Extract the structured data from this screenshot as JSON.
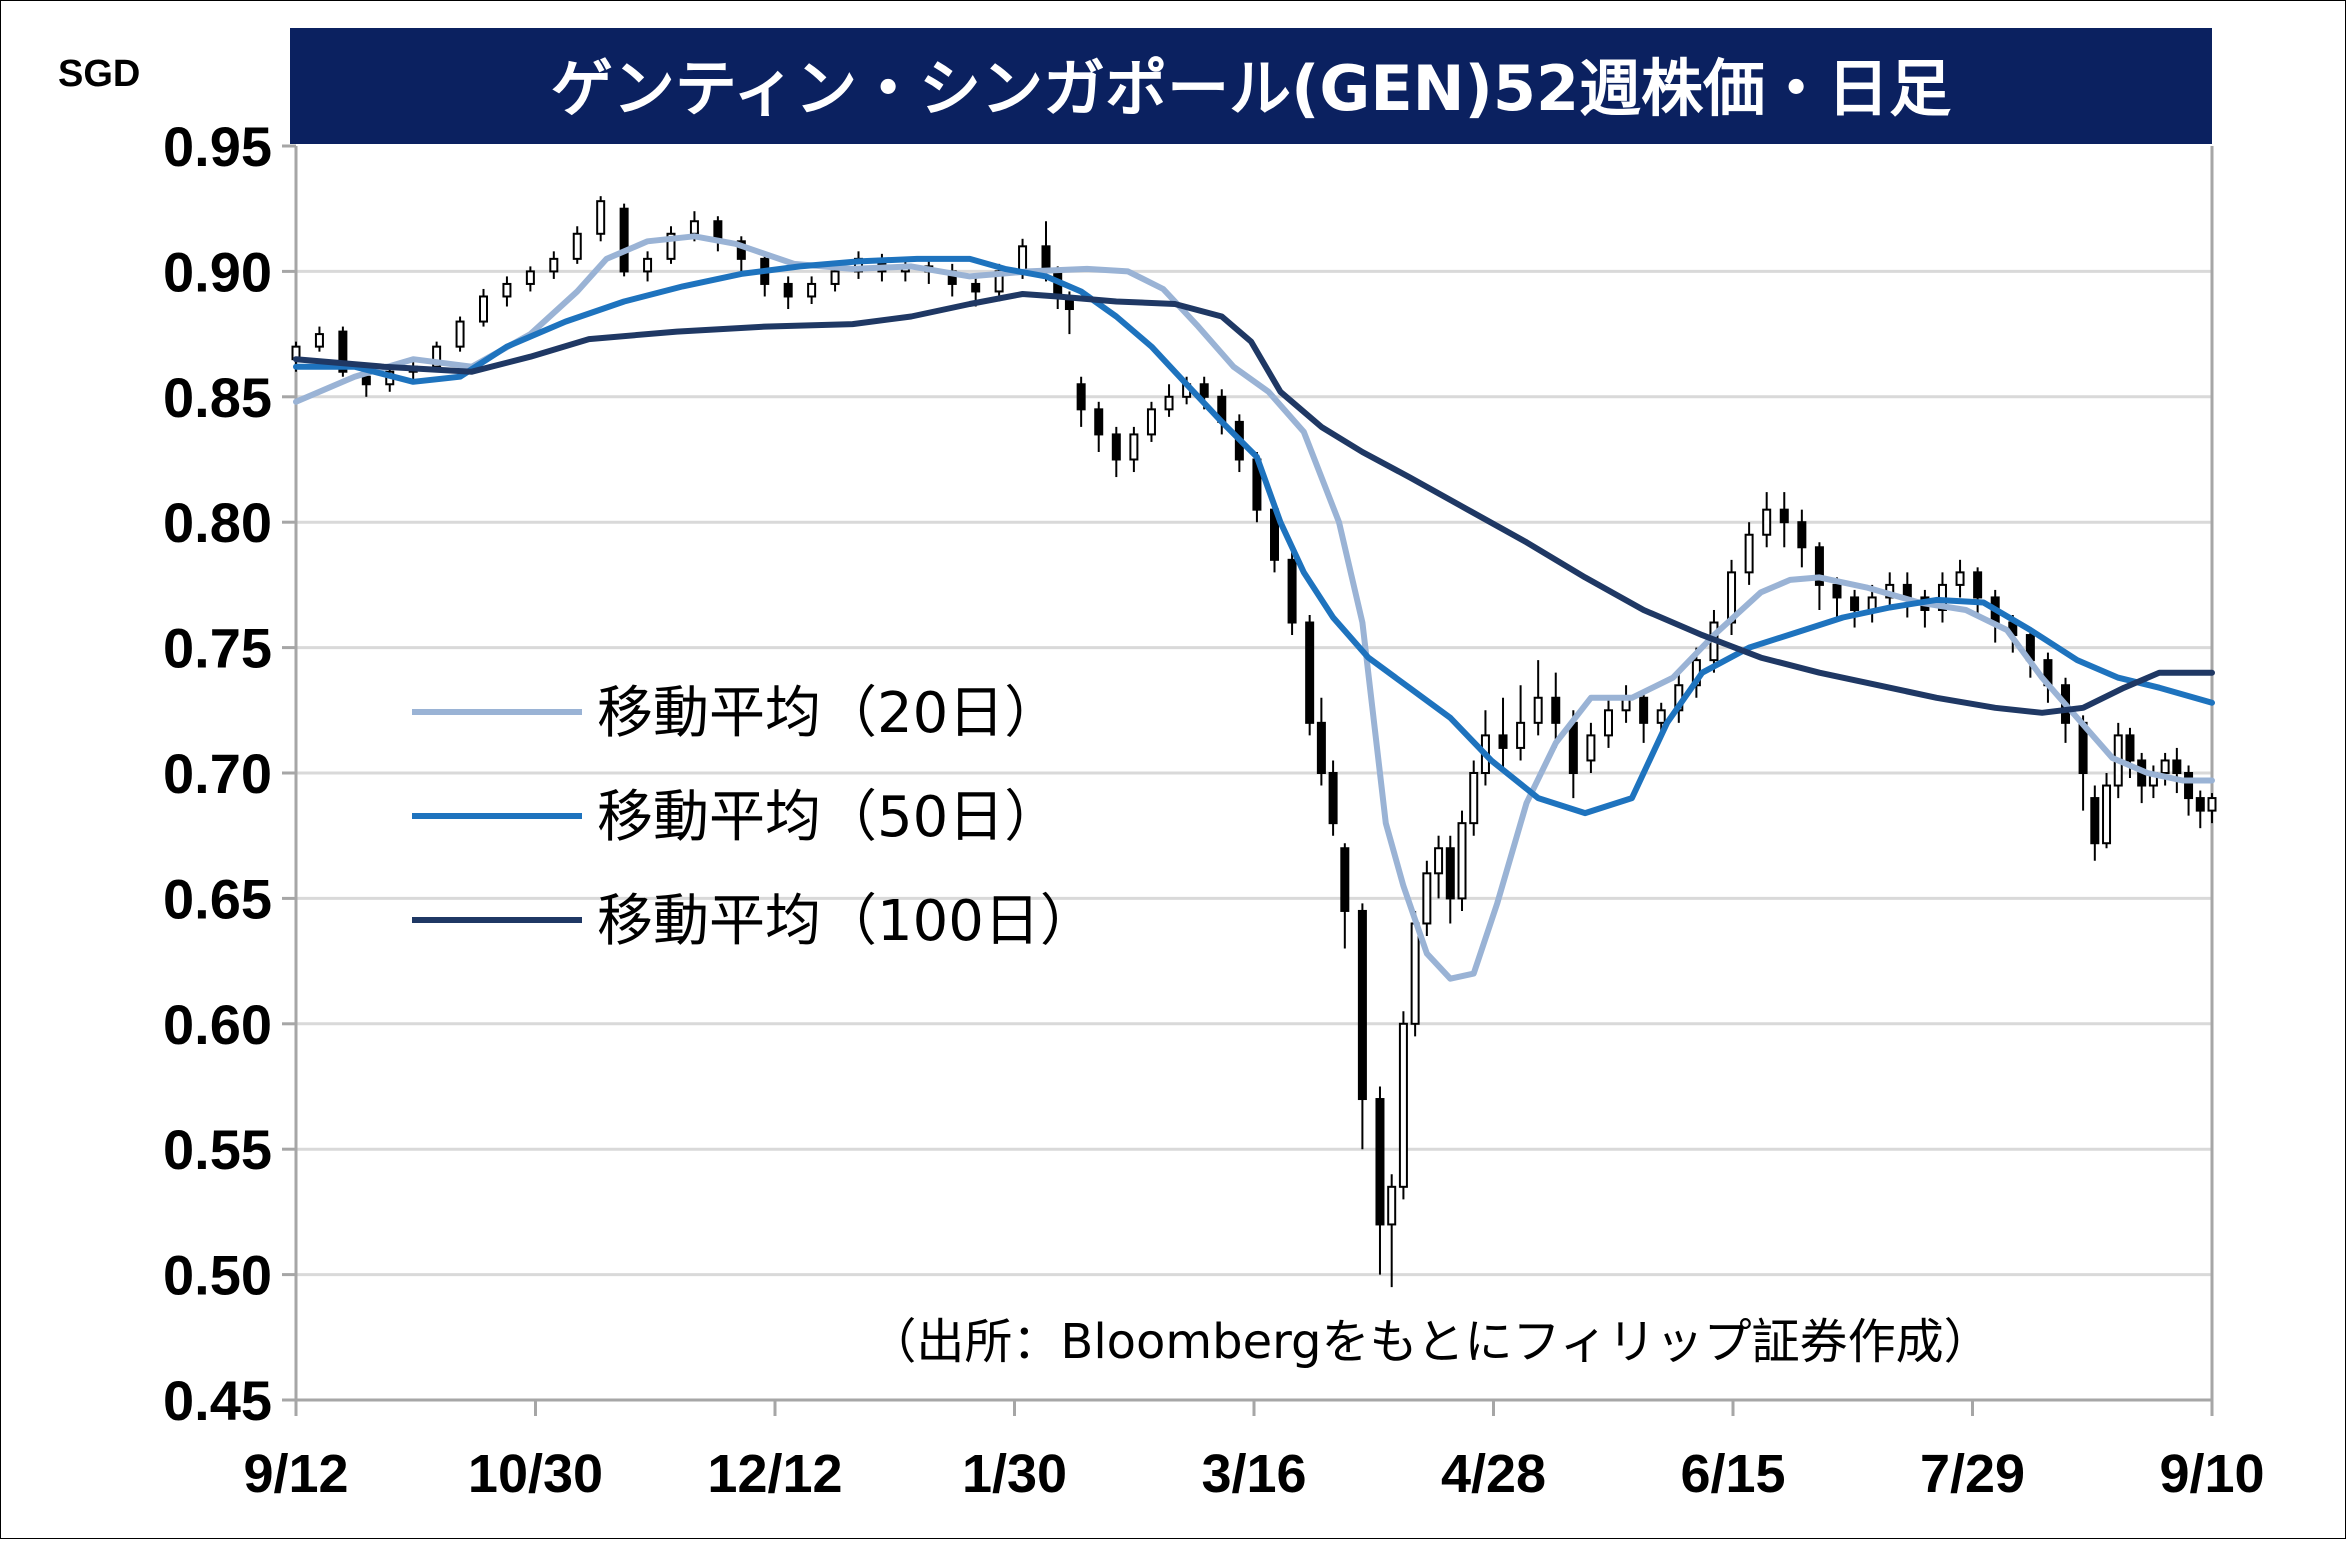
{
  "chart_data": {
    "type": "candlestick",
    "title": "ゲンティン・シンガポール(GEN)52週株価・日足",
    "unit_label": "SGD",
    "source_note": "（出所：Bloombergをもとにフィリップ証券作成）",
    "ylim": [
      0.45,
      0.95
    ],
    "y_ticks": [
      "0.95",
      "0.90",
      "0.85",
      "0.80",
      "0.75",
      "0.70",
      "0.65",
      "0.60",
      "0.55",
      "0.50",
      "0.45"
    ],
    "x_ticks": [
      "9/12",
      "10/30",
      "12/12",
      "1/30",
      "3/16",
      "4/28",
      "6/15",
      "7/29",
      "9/10"
    ],
    "grid": true,
    "legend_position": "middle-left",
    "colors": {
      "title_bg": "#0b2160",
      "ma20": "#9ab3d5",
      "ma50": "#1e73be",
      "ma100": "#1f3864",
      "grid": "#d9d9d9",
      "axis": "#a6a6a6",
      "candle": "#000000"
    },
    "series": [
      {
        "name": "移動平均（20日）",
        "color_key": "ma20",
        "points": [
          [
            0,
            0.848
          ],
          [
            10,
            0.858
          ],
          [
            20,
            0.865
          ],
          [
            30,
            0.862
          ],
          [
            40,
            0.875
          ],
          [
            48,
            0.892
          ],
          [
            53,
            0.905
          ],
          [
            60,
            0.912
          ],
          [
            68,
            0.914
          ],
          [
            75,
            0.911
          ],
          [
            85,
            0.903
          ],
          [
            95,
            0.901
          ],
          [
            105,
            0.902
          ],
          [
            115,
            0.898
          ],
          [
            125,
            0.9
          ],
          [
            135,
            0.901
          ],
          [
            142,
            0.9
          ],
          [
            148,
            0.893
          ],
          [
            154,
            0.878
          ],
          [
            160,
            0.862
          ],
          [
            166,
            0.852
          ],
          [
            172,
            0.836
          ],
          [
            178,
            0.8
          ],
          [
            182,
            0.76
          ],
          [
            186,
            0.68
          ],
          [
            189,
            0.655
          ],
          [
            193,
            0.628
          ],
          [
            197,
            0.618
          ],
          [
            201,
            0.62
          ],
          [
            205,
            0.648
          ],
          [
            210,
            0.688
          ],
          [
            215,
            0.712
          ],
          [
            221,
            0.73
          ],
          [
            228,
            0.73
          ],
          [
            235,
            0.738
          ],
          [
            242,
            0.755
          ],
          [
            250,
            0.772
          ],
          [
            255,
            0.777
          ],
          [
            260,
            0.778
          ],
          [
            268,
            0.774
          ],
          [
            277,
            0.768
          ],
          [
            285,
            0.765
          ],
          [
            292,
            0.757
          ],
          [
            298,
            0.738
          ],
          [
            304,
            0.722
          ],
          [
            310,
            0.706
          ],
          [
            316,
            0.7
          ],
          [
            322,
            0.697
          ],
          [
            327,
            0.697
          ]
        ]
      },
      {
        "name": "移動平均（50日）",
        "color_key": "ma50",
        "points": [
          [
            0,
            0.862
          ],
          [
            10,
            0.862
          ],
          [
            20,
            0.856
          ],
          [
            28,
            0.858
          ],
          [
            36,
            0.87
          ],
          [
            46,
            0.88
          ],
          [
            56,
            0.888
          ],
          [
            66,
            0.894
          ],
          [
            76,
            0.899
          ],
          [
            86,
            0.902
          ],
          [
            96,
            0.904
          ],
          [
            106,
            0.905
          ],
          [
            115,
            0.905
          ],
          [
            121,
            0.901
          ],
          [
            128,
            0.898
          ],
          [
            134,
            0.892
          ],
          [
            140,
            0.882
          ],
          [
            146,
            0.87
          ],
          [
            152,
            0.855
          ],
          [
            158,
            0.84
          ],
          [
            164,
            0.826
          ],
          [
            168,
            0.8
          ],
          [
            172,
            0.78
          ],
          [
            177,
            0.762
          ],
          [
            183,
            0.746
          ],
          [
            190,
            0.734
          ],
          [
            197,
            0.722
          ],
          [
            204,
            0.705
          ],
          [
            212,
            0.69
          ],
          [
            220,
            0.684
          ],
          [
            228,
            0.69
          ],
          [
            234,
            0.72
          ],
          [
            240,
            0.74
          ],
          [
            248,
            0.75
          ],
          [
            256,
            0.756
          ],
          [
            264,
            0.762
          ],
          [
            272,
            0.766
          ],
          [
            280,
            0.769
          ],
          [
            288,
            0.768
          ],
          [
            296,
            0.757
          ],
          [
            304,
            0.745
          ],
          [
            311,
            0.738
          ],
          [
            318,
            0.734
          ],
          [
            327,
            0.728
          ]
        ]
      },
      {
        "name": "移動平均（100日）",
        "color_key": "ma100",
        "points": [
          [
            0,
            0.865
          ],
          [
            15,
            0.862
          ],
          [
            30,
            0.86
          ],
          [
            40,
            0.866
          ],
          [
            50,
            0.873
          ],
          [
            65,
            0.876
          ],
          [
            80,
            0.878
          ],
          [
            95,
            0.879
          ],
          [
            105,
            0.882
          ],
          [
            115,
            0.887
          ],
          [
            124,
            0.891
          ],
          [
            130,
            0.89
          ],
          [
            140,
            0.888
          ],
          [
            150,
            0.887
          ],
          [
            158,
            0.882
          ],
          [
            163,
            0.872
          ],
          [
            168,
            0.852
          ],
          [
            175,
            0.838
          ],
          [
            182,
            0.828
          ],
          [
            190,
            0.818
          ],
          [
            200,
            0.805
          ],
          [
            210,
            0.792
          ],
          [
            220,
            0.778
          ],
          [
            230,
            0.765
          ],
          [
            240,
            0.755
          ],
          [
            250,
            0.746
          ],
          [
            260,
            0.74
          ],
          [
            270,
            0.735
          ],
          [
            280,
            0.73
          ],
          [
            290,
            0.726
          ],
          [
            298,
            0.724
          ],
          [
            305,
            0.726
          ],
          [
            312,
            0.734
          ],
          [
            318,
            0.74
          ],
          [
            327,
            0.74
          ]
        ]
      }
    ],
    "candles": [
      [
        0,
        0.865,
        0.87,
        0.86,
        0.872
      ],
      [
        4,
        0.87,
        0.875,
        0.868,
        0.878
      ],
      [
        8,
        0.876,
        0.86,
        0.858,
        0.878
      ],
      [
        12,
        0.858,
        0.855,
        0.85,
        0.86
      ],
      [
        16,
        0.855,
        0.86,
        0.852,
        0.862
      ],
      [
        20,
        0.86,
        0.862,
        0.855,
        0.866
      ],
      [
        24,
        0.862,
        0.87,
        0.86,
        0.872
      ],
      [
        28,
        0.87,
        0.88,
        0.868,
        0.882
      ],
      [
        32,
        0.88,
        0.89,
        0.878,
        0.893
      ],
      [
        36,
        0.89,
        0.895,
        0.886,
        0.898
      ],
      [
        40,
        0.895,
        0.9,
        0.892,
        0.902
      ],
      [
        44,
        0.9,
        0.905,
        0.897,
        0.908
      ],
      [
        48,
        0.905,
        0.915,
        0.903,
        0.918
      ],
      [
        52,
        0.915,
        0.928,
        0.912,
        0.93
      ],
      [
        56,
        0.925,
        0.9,
        0.898,
        0.927
      ],
      [
        60,
        0.9,
        0.905,
        0.896,
        0.908
      ],
      [
        64,
        0.905,
        0.915,
        0.903,
        0.918
      ],
      [
        68,
        0.915,
        0.92,
        0.912,
        0.924
      ],
      [
        72,
        0.92,
        0.912,
        0.908,
        0.922
      ],
      [
        76,
        0.912,
        0.905,
        0.9,
        0.914
      ],
      [
        80,
        0.905,
        0.895,
        0.89,
        0.907
      ],
      [
        84,
        0.895,
        0.89,
        0.885,
        0.898
      ],
      [
        88,
        0.89,
        0.895,
        0.887,
        0.898
      ],
      [
        92,
        0.895,
        0.9,
        0.892,
        0.903
      ],
      [
        96,
        0.9,
        0.905,
        0.897,
        0.908
      ],
      [
        100,
        0.905,
        0.9,
        0.896,
        0.907
      ],
      [
        104,
        0.9,
        0.902,
        0.896,
        0.905
      ],
      [
        108,
        0.902,
        0.9,
        0.895,
        0.905
      ],
      [
        112,
        0.9,
        0.895,
        0.89,
        0.903
      ],
      [
        116,
        0.895,
        0.892,
        0.886,
        0.898
      ],
      [
        120,
        0.892,
        0.9,
        0.888,
        0.903
      ],
      [
        124,
        0.9,
        0.91,
        0.897,
        0.913
      ],
      [
        128,
        0.91,
        0.9,
        0.896,
        0.92
      ],
      [
        130,
        0.9,
        0.89,
        0.885,
        0.902
      ],
      [
        132,
        0.89,
        0.885,
        0.875,
        0.892
      ],
      [
        134,
        0.855,
        0.845,
        0.838,
        0.858
      ],
      [
        137,
        0.845,
        0.835,
        0.828,
        0.848
      ],
      [
        140,
        0.835,
        0.825,
        0.818,
        0.838
      ],
      [
        143,
        0.825,
        0.835,
        0.82,
        0.838
      ],
      [
        146,
        0.835,
        0.845,
        0.832,
        0.848
      ],
      [
        149,
        0.845,
        0.85,
        0.842,
        0.855
      ],
      [
        152,
        0.85,
        0.855,
        0.847,
        0.858
      ],
      [
        155,
        0.855,
        0.85,
        0.845,
        0.858
      ],
      [
        158,
        0.85,
        0.84,
        0.835,
        0.853
      ],
      [
        161,
        0.84,
        0.825,
        0.82,
        0.843
      ],
      [
        164,
        0.825,
        0.805,
        0.8,
        0.828
      ],
      [
        167,
        0.805,
        0.785,
        0.78,
        0.808
      ],
      [
        170,
        0.785,
        0.76,
        0.755,
        0.788
      ],
      [
        173,
        0.76,
        0.72,
        0.715,
        0.763
      ],
      [
        175,
        0.72,
        0.7,
        0.695,
        0.73
      ],
      [
        177,
        0.7,
        0.68,
        0.675,
        0.705
      ],
      [
        179,
        0.67,
        0.645,
        0.63,
        0.672
      ],
      [
        182,
        0.645,
        0.57,
        0.55,
        0.648
      ],
      [
        185,
        0.57,
        0.52,
        0.5,
        0.575
      ],
      [
        187,
        0.52,
        0.535,
        0.495,
        0.54
      ],
      [
        189,
        0.535,
        0.6,
        0.53,
        0.605
      ],
      [
        191,
        0.6,
        0.64,
        0.595,
        0.645
      ],
      [
        193,
        0.64,
        0.66,
        0.635,
        0.665
      ],
      [
        195,
        0.66,
        0.67,
        0.65,
        0.675
      ],
      [
        197,
        0.67,
        0.65,
        0.64,
        0.675
      ],
      [
        199,
        0.65,
        0.68,
        0.645,
        0.685
      ],
      [
        201,
        0.68,
        0.7,
        0.675,
        0.705
      ],
      [
        203,
        0.7,
        0.715,
        0.695,
        0.725
      ],
      [
        206,
        0.715,
        0.71,
        0.7,
        0.73
      ],
      [
        209,
        0.71,
        0.72,
        0.705,
        0.735
      ],
      [
        212,
        0.72,
        0.73,
        0.715,
        0.745
      ],
      [
        215,
        0.73,
        0.72,
        0.71,
        0.74
      ],
      [
        218,
        0.72,
        0.7,
        0.69,
        0.725
      ],
      [
        221,
        0.705,
        0.715,
        0.7,
        0.72
      ],
      [
        224,
        0.715,
        0.725,
        0.71,
        0.73
      ],
      [
        227,
        0.725,
        0.73,
        0.72,
        0.735
      ],
      [
        230,
        0.73,
        0.72,
        0.712,
        0.733
      ],
      [
        233,
        0.72,
        0.725,
        0.715,
        0.728
      ],
      [
        236,
        0.725,
        0.735,
        0.72,
        0.74
      ],
      [
        239,
        0.735,
        0.745,
        0.73,
        0.75
      ],
      [
        242,
        0.745,
        0.76,
        0.74,
        0.765
      ],
      [
        245,
        0.76,
        0.78,
        0.755,
        0.785
      ],
      [
        248,
        0.78,
        0.795,
        0.775,
        0.8
      ],
      [
        251,
        0.795,
        0.805,
        0.79,
        0.812
      ],
      [
        254,
        0.805,
        0.8,
        0.79,
        0.812
      ],
      [
        257,
        0.8,
        0.79,
        0.782,
        0.805
      ],
      [
        260,
        0.79,
        0.775,
        0.765,
        0.792
      ],
      [
        263,
        0.775,
        0.77,
        0.762,
        0.778
      ],
      [
        266,
        0.77,
        0.765,
        0.758,
        0.773
      ],
      [
        269,
        0.765,
        0.77,
        0.76,
        0.775
      ],
      [
        272,
        0.77,
        0.775,
        0.765,
        0.78
      ],
      [
        275,
        0.775,
        0.77,
        0.762,
        0.78
      ],
      [
        278,
        0.77,
        0.765,
        0.758,
        0.773
      ],
      [
        281,
        0.765,
        0.775,
        0.76,
        0.78
      ],
      [
        284,
        0.775,
        0.78,
        0.77,
        0.785
      ],
      [
        287,
        0.78,
        0.77,
        0.762,
        0.782
      ],
      [
        290,
        0.77,
        0.76,
        0.752,
        0.773
      ],
      [
        293,
        0.76,
        0.755,
        0.748,
        0.763
      ],
      [
        296,
        0.755,
        0.745,
        0.738,
        0.758
      ],
      [
        299,
        0.745,
        0.735,
        0.728,
        0.748
      ],
      [
        302,
        0.735,
        0.72,
        0.712,
        0.738
      ],
      [
        305,
        0.72,
        0.7,
        0.685,
        0.723
      ],
      [
        307,
        0.69,
        0.672,
        0.665,
        0.695
      ],
      [
        309,
        0.672,
        0.695,
        0.67,
        0.7
      ],
      [
        311,
        0.695,
        0.715,
        0.69,
        0.72
      ],
      [
        313,
        0.715,
        0.705,
        0.698,
        0.718
      ],
      [
        315,
        0.705,
        0.695,
        0.688,
        0.708
      ],
      [
        317,
        0.695,
        0.7,
        0.69,
        0.703
      ],
      [
        319,
        0.7,
        0.705,
        0.695,
        0.708
      ],
      [
        321,
        0.705,
        0.7,
        0.692,
        0.71
      ],
      [
        323,
        0.7,
        0.69,
        0.683,
        0.703
      ],
      [
        325,
        0.69,
        0.685,
        0.678,
        0.693
      ],
      [
        327,
        0.685,
        0.69,
        0.68,
        0.692
      ]
    ]
  }
}
